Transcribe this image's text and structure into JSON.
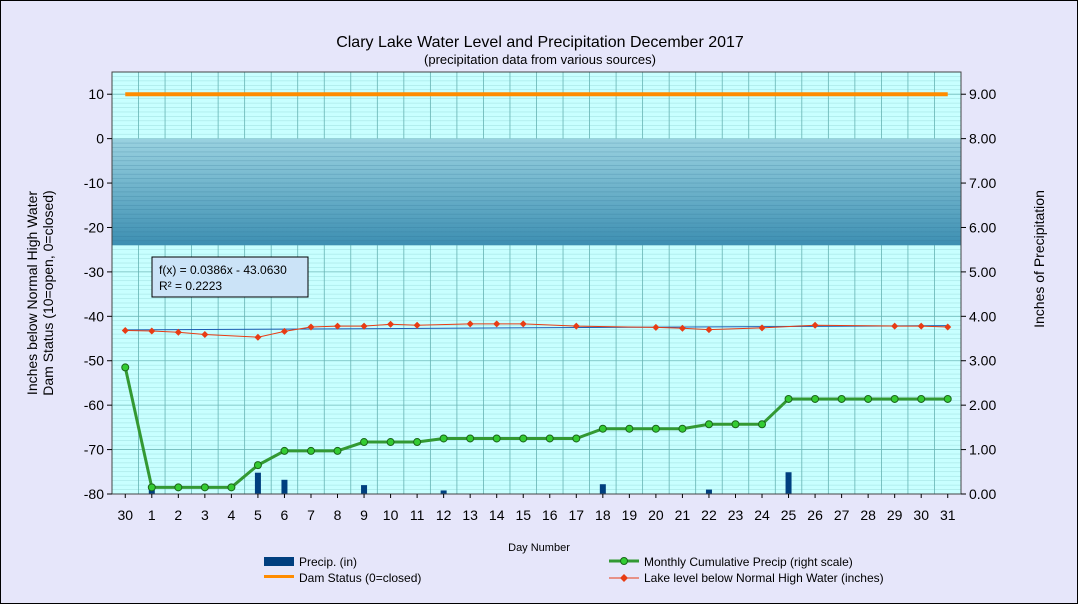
{
  "chart_data": {
    "type": "line",
    "title": "Clary Lake Water Level and Precipitation December 2017",
    "subtitle": "(precipitation data from various sources)",
    "xlabel": "Day Number",
    "ylabel_left": [
      "Inches  below  Normal High Water",
      "Dam Status (10=open, 0=closed)"
    ],
    "ylabel_right": "Inches  of  Precipitation",
    "x_categories": [
      "30",
      "1",
      "2",
      "3",
      "4",
      "5",
      "6",
      "7",
      "8",
      "9",
      "10",
      "11",
      "12",
      "13",
      "14",
      "15",
      "16",
      "17",
      "18",
      "19",
      "20",
      "21",
      "22",
      "23",
      "24",
      "25",
      "26",
      "27",
      "28",
      "29",
      "30",
      "31"
    ],
    "ylim_left": [
      -80,
      15
    ],
    "yticks_left": [
      "10",
      "0",
      "-10",
      "-20",
      "-30",
      "-40",
      "-50",
      "-60",
      "-70",
      "-80"
    ],
    "ylim_right": [
      0,
      9.5
    ],
    "yticks_right": [
      "9.00",
      "8.00",
      "7.00",
      "6.00",
      "5.00",
      "4.00",
      "3.00",
      "2.00",
      "1.00",
      "0.00"
    ],
    "shaded_band_left": [
      -24,
      0
    ],
    "grid": true,
    "legend_position": "bottom",
    "series": [
      {
        "name": "Precip. (in)",
        "kind": "bar",
        "axis": "right",
        "color": "#003f7f",
        "values": [
          0,
          0.1,
          0,
          0,
          0,
          0.48,
          0.32,
          0,
          0,
          0.2,
          0,
          0,
          0.08,
          0,
          0,
          0,
          0,
          0,
          0.22,
          0,
          0,
          0,
          0.1,
          0,
          0,
          0.49,
          0,
          0,
          0,
          0,
          0,
          0
        ]
      },
      {
        "name": "Dam Status (0=closed)",
        "kind": "line",
        "axis": "left",
        "color": "#ff8c00",
        "values": [
          10,
          10,
          10,
          10,
          10,
          10,
          10,
          10,
          10,
          10,
          10,
          10,
          10,
          10,
          10,
          10,
          10,
          10,
          10,
          10,
          10,
          10,
          10,
          10,
          10,
          10,
          10,
          10,
          10,
          10,
          10,
          10
        ]
      },
      {
        "name": "Monthly Cumulative Precip (right scale)",
        "kind": "line",
        "axis": "right",
        "color": "#339933",
        "values": [
          2.85,
          0.15,
          0.15,
          0.15,
          0.15,
          0.65,
          0.97,
          0.97,
          0.97,
          1.17,
          1.17,
          1.17,
          1.25,
          1.25,
          1.25,
          1.25,
          1.25,
          1.25,
          1.47,
          1.47,
          1.47,
          1.47,
          1.57,
          1.57,
          1.57,
          2.14,
          2.14,
          2.14,
          2.14,
          2.14,
          2.14,
          2.14
        ]
      },
      {
        "name": "Lake level below Normal High Water (inches)",
        "kind": "line",
        "axis": "left",
        "color": "#e83c14",
        "values": [
          -43.2,
          -43.3,
          -43.6,
          -44.1,
          null,
          -44.7,
          -43.4,
          -42.4,
          -42.2,
          -42.2,
          -41.8,
          -42.0,
          null,
          -41.7,
          -41.7,
          -41.7,
          null,
          -42.2,
          null,
          null,
          -42.5,
          -42.7,
          -43.0,
          null,
          -42.6,
          null,
          -42.0,
          null,
          null,
          -42.2,
          -42.2,
          -42.4
        ]
      }
    ],
    "trendline": {
      "axis": "left",
      "from": [
        0,
        -43.06
      ],
      "to": [
        31,
        -42.1
      ],
      "equation": "f(x) = 0.0386x - 43.0630",
      "r_squared": "R² = 0.2223"
    },
    "colors": {
      "plot_bg": "#c8ffff",
      "band_top": "#9ad2e0",
      "band_bottom": "#3d8fb2",
      "grid": "#66b3b3",
      "trend": "#1f5fb4"
    }
  }
}
